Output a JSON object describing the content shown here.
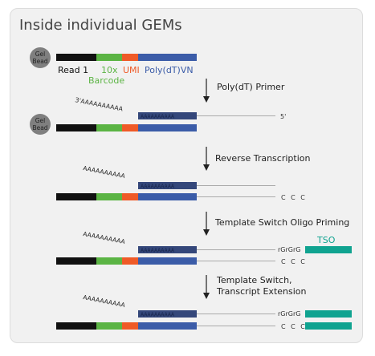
{
  "title": "Inside individual GEMs",
  "bead": {
    "line1": "Gel",
    "line2": "Bead"
  },
  "segments": {
    "read1": "Read 1",
    "barcode_line1": "10x",
    "barcode_line2": "Barcode",
    "umi": "UMI",
    "polydt": "Poly(dT)VN"
  },
  "steps": [
    {
      "label": "Poly(dT) Primer"
    },
    {
      "label": "Reverse Transcription"
    },
    {
      "label": "Template Switch Oligo Priming"
    },
    {
      "label_line1": "Template Switch,",
      "label_line2": "Transcript Extension"
    }
  ],
  "polyA_tail": "AAAAAAAAAA",
  "polyA_inline": "AAAAAAAAAA",
  "three_prime": "3'",
  "five_prime": "5'",
  "ccc": "C C C",
  "rgrgrg": "rGrGrG",
  "tso": "TSO",
  "colors": {
    "black": "#111111",
    "barcode_green": "#5bb444",
    "umi_orange": "#ef5a27",
    "polydt_blue": "#3b5ca8",
    "polya_dark": "#34477a",
    "tso_teal": "#10a390",
    "bead_gray": "#7f7f7f"
  }
}
